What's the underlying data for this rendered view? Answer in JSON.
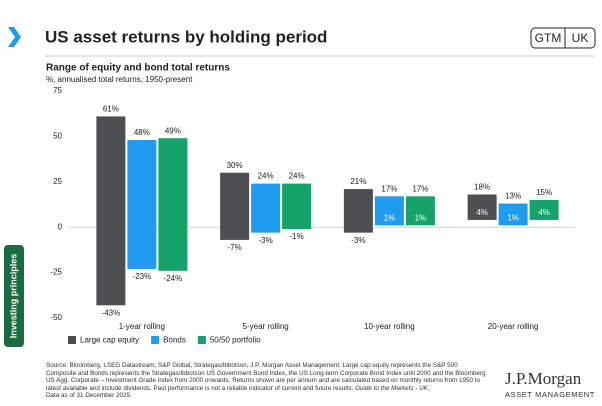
{
  "header": {
    "title": "US asset returns by holding period",
    "badge_left": "GTM",
    "badge_right": "UK"
  },
  "side_label": "Investing principles",
  "chart_data": {
    "type": "floating-bar",
    "title": "Range of equity and bond total returns",
    "subtitle": "%, annualised total returns, 1950-present",
    "categories": [
      "1-year rolling",
      "5-year rolling",
      "10-year rolling",
      "20-year rolling"
    ],
    "series": [
      {
        "name": "Large cap equity",
        "color": "#4d4f53",
        "values": [
          [
            -43,
            61
          ],
          [
            -7,
            30
          ],
          [
            -3,
            21
          ],
          [
            4,
            18
          ]
        ],
        "value_labels": [
          [
            "-43%",
            "61%"
          ],
          [
            "-7%",
            "30%"
          ],
          [
            "-3%",
            "21%"
          ],
          [
            "4%",
            "18%"
          ]
        ]
      },
      {
        "name": "Bonds",
        "color": "#1f9bf0",
        "values": [
          [
            -23,
            48
          ],
          [
            -3,
            24
          ],
          [
            1,
            17
          ],
          [
            1,
            13
          ]
        ],
        "value_labels": [
          [
            "-23%",
            "48%"
          ],
          [
            "-3%",
            "24%"
          ],
          [
            "1%",
            "17%"
          ],
          [
            "1%",
            "13%"
          ]
        ]
      },
      {
        "name": "50/50 portfolio",
        "color": "#15a36a",
        "values": [
          [
            -24,
            49
          ],
          [
            -1,
            24
          ],
          [
            1,
            17
          ],
          [
            4,
            15
          ]
        ],
        "value_labels": [
          [
            "-24%",
            "49%"
          ],
          [
            "-1%",
            "24%"
          ],
          [
            "1%",
            "17%"
          ],
          [
            "4%",
            "15%"
          ]
        ]
      }
    ],
    "ylim": [
      -50,
      75
    ],
    "yticks": [
      -50,
      -25,
      0,
      25,
      50,
      75
    ]
  },
  "source": {
    "text": "Source: Bloomberg, LSEG Datastream, S&P Global, Strategas/Ibbotson, J.P. Morgan Asset Management. Large cap equity represents the S&P 500 Composite and Bonds represents the Strategas/Ibbotson US Government Bond Index, the US Long-term Corporate Bond Index until 2000 and the Bloomberg US Agg. Corporate – Investment Grade Index from 2000 onwards. Returns shown are per annum and are calculated based on monthly returns from 1950 to latest available and include dividends. Past performance is not a reliable indicator of current and future results.",
    "guide": "Guide to the Markets - UK.",
    "date": "Data as of 31 December 2025."
  },
  "logo": {
    "name": "J.P.Morgan",
    "tagline": "ASSET MANAGEMENT"
  }
}
